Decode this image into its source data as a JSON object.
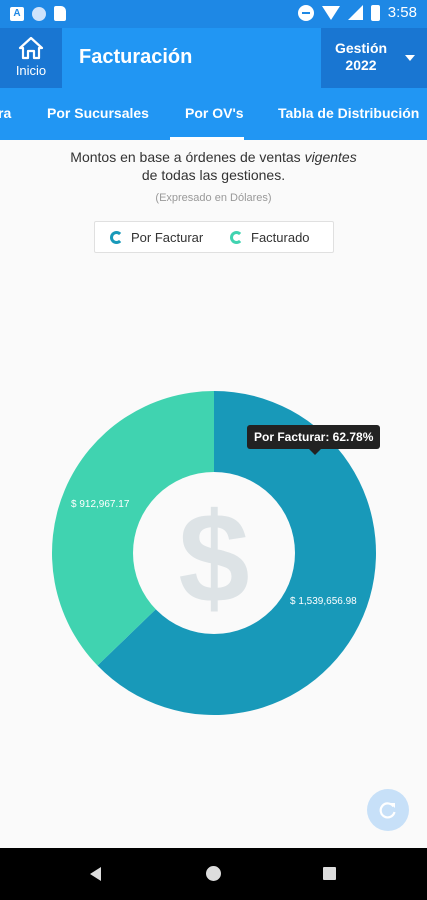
{
  "status_bar": {
    "time": "3:58",
    "notification_icon_label": "A"
  },
  "app_bar": {
    "home_label": "Inicio",
    "title": "Facturación",
    "year_label": "Gestión",
    "year_value": "2022"
  },
  "tabs": [
    {
      "label": "ra"
    },
    {
      "label": "Por Sucursales"
    },
    {
      "label": "Por OV's"
    },
    {
      "label": "Tabla de Distribución"
    }
  ],
  "selected_tab": "Por OV's",
  "subtitle": {
    "line1_pre": "Montos en base a órdenes de ventas ",
    "line1_em": "vigentes",
    "line2": "de todas las gestiones."
  },
  "note": "(Expresado en Dólares)",
  "legend": [
    {
      "label": "Por Facturar",
      "color": "#1899b9"
    },
    {
      "label": "Facturado",
      "color": "#40d3b0"
    }
  ],
  "chart_data": {
    "type": "pie",
    "variant": "donut",
    "series": [
      {
        "name": "Por Facturar",
        "value": 1539656.98,
        "label": "$ 1,539,656.98",
        "percent": 62.78,
        "color": "#1899b9"
      },
      {
        "name": "Facturado",
        "value": 912967.17,
        "label": "$ 912,967.17",
        "percent": 37.22,
        "color": "#40d3b0"
      }
    ],
    "tooltip": "Por Facturar: 62.78%",
    "center_icon": "dollar-icon"
  },
  "fab": {
    "icon": "refresh-icon"
  }
}
